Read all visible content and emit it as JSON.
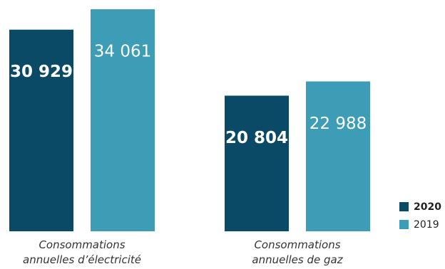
{
  "chart_data": {
    "type": "bar",
    "categories": [
      "Consommations annuelles d’électricité",
      "Consommations annuelles de gaz"
    ],
    "series": [
      {
        "name": "2020",
        "color": "#0b4a66",
        "values": [
          30929,
          20804
        ],
        "value_labels": [
          "30 929",
          "20 804"
        ]
      },
      {
        "name": "2019",
        "color": "#3e9db6",
        "values": [
          34061,
          22988
        ],
        "value_labels": [
          "34 061",
          "22 988"
        ]
      }
    ],
    "legend": "bottom-right"
  }
}
